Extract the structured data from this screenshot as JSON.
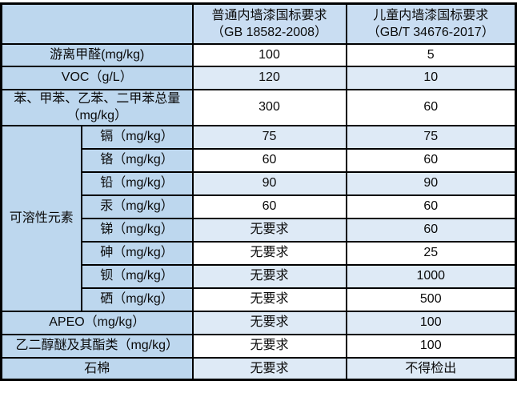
{
  "colors": {
    "label_blue": "#BDD7EE",
    "header_blue": "#C9DDF2",
    "stripe_blue": "#DEEAF6",
    "row_white": "#FFFFFF",
    "border_black": "#000000"
  },
  "table": {
    "corner": "",
    "header": {
      "normal": {
        "line1": "普通内墙漆国标要求",
        "line2": "（GB 18582-2008）"
      },
      "child": {
        "line1": "儿童内墙漆国标要求",
        "line2": "（GB/T 34676-2017）"
      }
    },
    "rows_top": [
      {
        "label": "游离甲醛(mg/kg)",
        "normal": "100",
        "child": "5"
      },
      {
        "label": "VOC（g/L）",
        "normal": "120",
        "child": "10"
      },
      {
        "label": "苯、甲苯、乙苯、二甲苯总量（mg/kg）",
        "normal": "300",
        "child": "60"
      }
    ],
    "soluble_group": {
      "label": "可溶性元素",
      "items": [
        {
          "label": "镉（mg/kg）",
          "normal": "75",
          "child": "75"
        },
        {
          "label": "铬（mg/kg）",
          "normal": "60",
          "child": "60"
        },
        {
          "label": "铅（mg/kg）",
          "normal": "90",
          "child": "90"
        },
        {
          "label": "汞（mg/kg）",
          "normal": "60",
          "child": "60"
        },
        {
          "label": "锑（mg/kg）",
          "normal": "无要求",
          "child": "60"
        },
        {
          "label": "砷（mg/kg）",
          "normal": "无要求",
          "child": "25"
        },
        {
          "label": "钡（mg/kg）",
          "normal": "无要求",
          "child": "1000"
        },
        {
          "label": "硒（mg/kg）",
          "normal": "无要求",
          "child": "500"
        }
      ]
    },
    "rows_bottom": [
      {
        "label": "APEO（mg/kg）",
        "normal": "无要求",
        "child": "100"
      },
      {
        "label": "乙二醇醚及其酯类（mg/kg）",
        "normal": "无要求",
        "child": "100"
      },
      {
        "label": "石棉",
        "normal": "无要求",
        "child": "不得检出"
      }
    ]
  },
  "chart_data": {
    "type": "table",
    "columns": [
      "",
      "普通内墙漆国标要求（GB 18582-2008）",
      "儿童内墙漆国标要求（GB/T 34676-2017）"
    ],
    "rows": [
      {
        "group": "",
        "item": "游离甲醛(mg/kg)",
        "normal": "100",
        "child": "5"
      },
      {
        "group": "",
        "item": "VOC（g/L）",
        "normal": "120",
        "child": "10"
      },
      {
        "group": "",
        "item": "苯、甲苯、乙苯、二甲苯总量（mg/kg）",
        "normal": "300",
        "child": "60"
      },
      {
        "group": "可溶性元素",
        "item": "镉（mg/kg）",
        "normal": "75",
        "child": "75"
      },
      {
        "group": "可溶性元素",
        "item": "铬（mg/kg）",
        "normal": "60",
        "child": "60"
      },
      {
        "group": "可溶性元素",
        "item": "铅（mg/kg）",
        "normal": "90",
        "child": "90"
      },
      {
        "group": "可溶性元素",
        "item": "汞（mg/kg）",
        "normal": "60",
        "child": "60"
      },
      {
        "group": "可溶性元素",
        "item": "锑（mg/kg）",
        "normal": "无要求",
        "child": "60"
      },
      {
        "group": "可溶性元素",
        "item": "砷（mg/kg）",
        "normal": "无要求",
        "child": "25"
      },
      {
        "group": "可溶性元素",
        "item": "钡（mg/kg）",
        "normal": "无要求",
        "child": "1000"
      },
      {
        "group": "可溶性元素",
        "item": "硒（mg/kg）",
        "normal": "无要求",
        "child": "500"
      },
      {
        "group": "",
        "item": "APEO（mg/kg）",
        "normal": "无要求",
        "child": "100"
      },
      {
        "group": "",
        "item": "乙二醇醚及其酯类（mg/kg）",
        "normal": "无要求",
        "child": "100"
      },
      {
        "group": "",
        "item": "石棉",
        "normal": "无要求",
        "child": "不得检出"
      }
    ]
  }
}
